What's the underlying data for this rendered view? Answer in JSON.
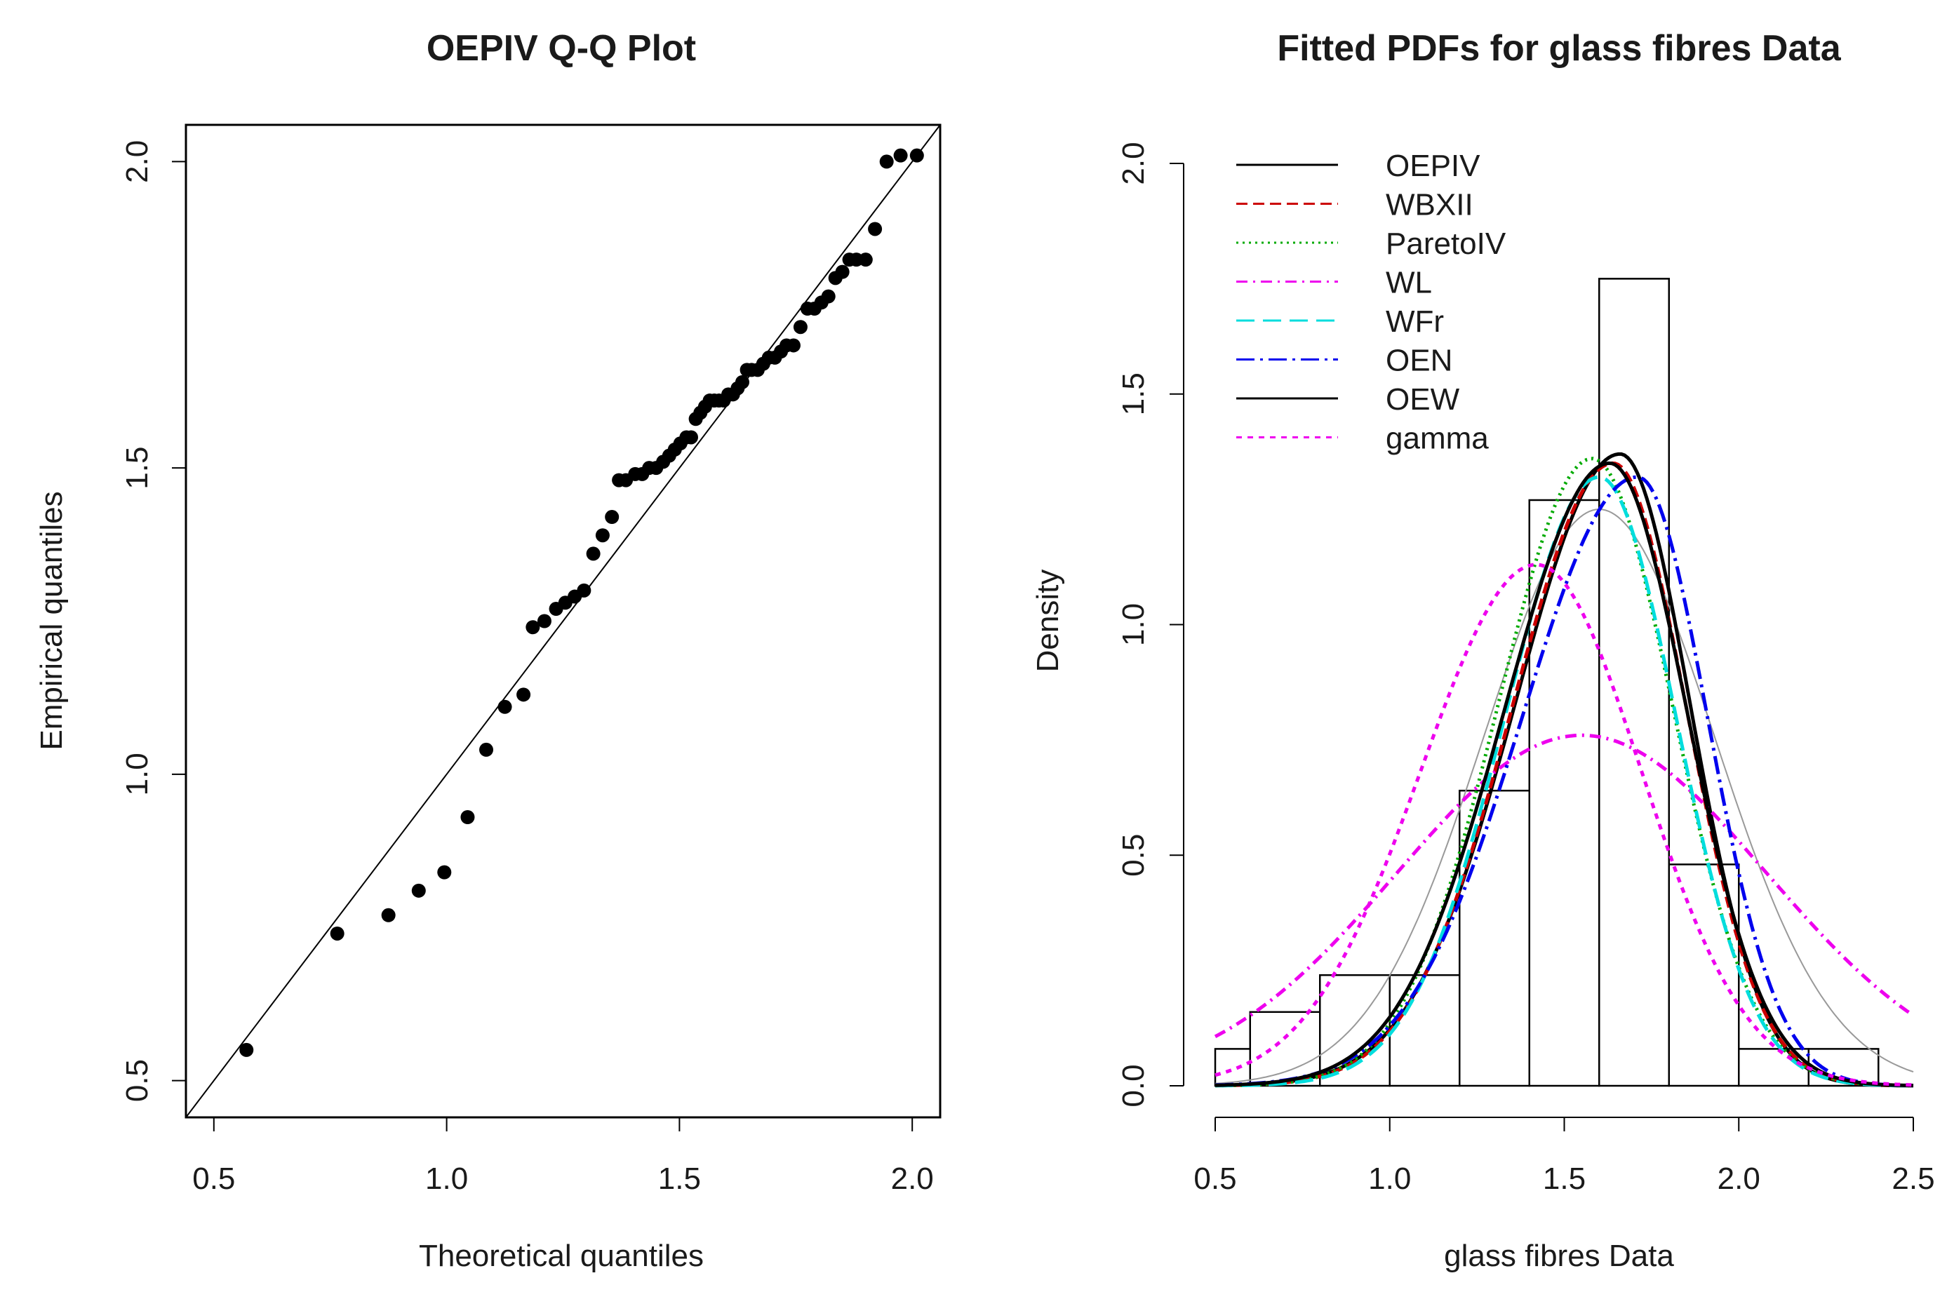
{
  "chart_data": [
    {
      "type": "scatter",
      "title": "OEPIV Q-Q Plot",
      "xlabel": "Theoretical quantiles",
      "ylabel": "Empirical quantiles",
      "xlim": [
        0.44,
        2.06
      ],
      "ylim": [
        0.44,
        2.06
      ],
      "xticks": [
        0.5,
        1.0,
        1.5,
        2.0
      ],
      "yticks": [
        0.5,
        1.0,
        1.5,
        2.0
      ],
      "xtick_labels": [
        "0.5",
        "1.0",
        "1.5",
        "2.0"
      ],
      "ytick_labels": [
        "0.5",
        "1.0",
        "1.5",
        "2.0"
      ],
      "reference_line": "y = x",
      "points": {
        "x": [
          0.57,
          0.765,
          0.875,
          0.94,
          0.995,
          1.045,
          1.085,
          1.125,
          1.165,
          1.185,
          1.21,
          1.235,
          1.255,
          1.275,
          1.295,
          1.315,
          1.335,
          1.355,
          1.37,
          1.385,
          1.405,
          1.42,
          1.435,
          1.45,
          1.465,
          1.478,
          1.49,
          1.502,
          1.515,
          1.525,
          1.535,
          1.545,
          1.555,
          1.565,
          1.575,
          1.585,
          1.595,
          1.605,
          1.615,
          1.625,
          1.635,
          1.645,
          1.655,
          1.668,
          1.68,
          1.692,
          1.705,
          1.718,
          1.73,
          1.745,
          1.76,
          1.775,
          1.79,
          1.805,
          1.82,
          1.835,
          1.85,
          1.865,
          1.88,
          1.9,
          1.92,
          1.945,
          1.975,
          2.01
        ],
        "y": [
          0.55,
          0.74,
          0.77,
          0.81,
          0.84,
          0.93,
          1.04,
          1.11,
          1.13,
          1.24,
          1.25,
          1.27,
          1.28,
          1.29,
          1.3,
          1.36,
          1.39,
          1.42,
          1.48,
          1.48,
          1.49,
          1.49,
          1.5,
          1.5,
          1.51,
          1.52,
          1.53,
          1.54,
          1.55,
          1.55,
          1.58,
          1.59,
          1.6,
          1.61,
          1.61,
          1.61,
          1.61,
          1.62,
          1.62,
          1.63,
          1.64,
          1.66,
          1.66,
          1.66,
          1.67,
          1.68,
          1.68,
          1.69,
          1.7,
          1.7,
          1.73,
          1.76,
          1.76,
          1.77,
          1.78,
          1.81,
          1.82,
          1.84,
          1.84,
          1.84,
          1.89,
          2.0,
          2.01,
          2.01
        ]
      }
    },
    {
      "type": "histogram",
      "title": "Fitted PDFs for glass fibres Data",
      "xlabel": "glass fibres Data",
      "ylabel": "Density",
      "xlim": [
        0.5,
        2.5
      ],
      "ylim": [
        0.0,
        2.0
      ],
      "xticks": [
        0.5,
        1.0,
        1.5,
        2.0,
        2.5
      ],
      "yticks": [
        0.0,
        0.5,
        1.0,
        1.5,
        2.0
      ],
      "xtick_labels": [
        "0.5",
        "1.0",
        "1.5",
        "2.0",
        "2.5"
      ],
      "ytick_labels": [
        "0.0",
        "0.5",
        "1.0",
        "1.5",
        "2.0"
      ],
      "bins": [
        {
          "from": 0.4,
          "to": 0.6,
          "density": 0.08
        },
        {
          "from": 0.6,
          "to": 0.8,
          "density": 0.16
        },
        {
          "from": 0.8,
          "to": 1.0,
          "density": 0.24
        },
        {
          "from": 1.0,
          "to": 1.2,
          "density": 0.24
        },
        {
          "from": 1.2,
          "to": 1.4,
          "density": 0.64
        },
        {
          "from": 1.4,
          "to": 1.6,
          "density": 1.27
        },
        {
          "from": 1.6,
          "to": 1.8,
          "density": 1.75
        },
        {
          "from": 1.8,
          "to": 2.0,
          "density": 0.48
        },
        {
          "from": 2.0,
          "to": 2.2,
          "density": 0.08
        },
        {
          "from": 2.2,
          "to": 2.4,
          "density": 0.08
        }
      ],
      "legend_position": "top-left",
      "series": [
        {
          "name": "OEPIV",
          "color": "#000000",
          "dash": "",
          "params": {
            "kind": "skew",
            "mu": 1.66,
            "sl": 0.3,
            "sr": 0.2,
            "peak": 1.37
          }
        },
        {
          "name": "WBXII",
          "color": "#cc0000",
          "dash": "16 8",
          "params": {
            "kind": "skew",
            "mu": 1.64,
            "sl": 0.29,
            "sr": 0.21,
            "peak": 1.35
          }
        },
        {
          "name": "ParetoIV",
          "color": "#00aa00",
          "dash": "3 6",
          "params": {
            "kind": "skew",
            "mu": 1.58,
            "sl": 0.27,
            "sr": 0.23,
            "peak": 1.36
          }
        },
        {
          "name": "WL",
          "color": "#ee00ee",
          "dash": "16 8 3 8",
          "params": {
            "kind": "normal",
            "mu": 1.55,
            "sd": 0.53,
            "peak": 0.76
          }
        },
        {
          "name": "WFr",
          "color": "#00dddd",
          "dash": "26 12",
          "params": {
            "kind": "skew",
            "mu": 1.6,
            "sl": 0.27,
            "sr": 0.22,
            "peak": 1.32
          }
        },
        {
          "name": "OEN",
          "color": "#0000ee",
          "dash": "26 8 4 8",
          "params": {
            "kind": "skew",
            "mu": 1.71,
            "sl": 0.33,
            "sr": 0.2,
            "peak": 1.32
          }
        },
        {
          "name": "OEW",
          "color": "#000000",
          "dash": "",
          "params": {
            "kind": "skew",
            "mu": 1.63,
            "sl": 0.3,
            "sr": 0.22,
            "peak": 1.35
          }
        },
        {
          "name": "gamma",
          "color": "#ee00ee",
          "dash": "8 8",
          "params": {
            "kind": "skew",
            "mu": 1.42,
            "sl": 0.33,
            "sr": 0.3,
            "peak": 1.13
          }
        }
      ],
      "extra_curve": {
        "name": "",
        "color": "#999999",
        "params": {
          "kind": "normal",
          "mu": 1.6,
          "sd": 0.33,
          "peak": 1.25
        }
      }
    }
  ]
}
